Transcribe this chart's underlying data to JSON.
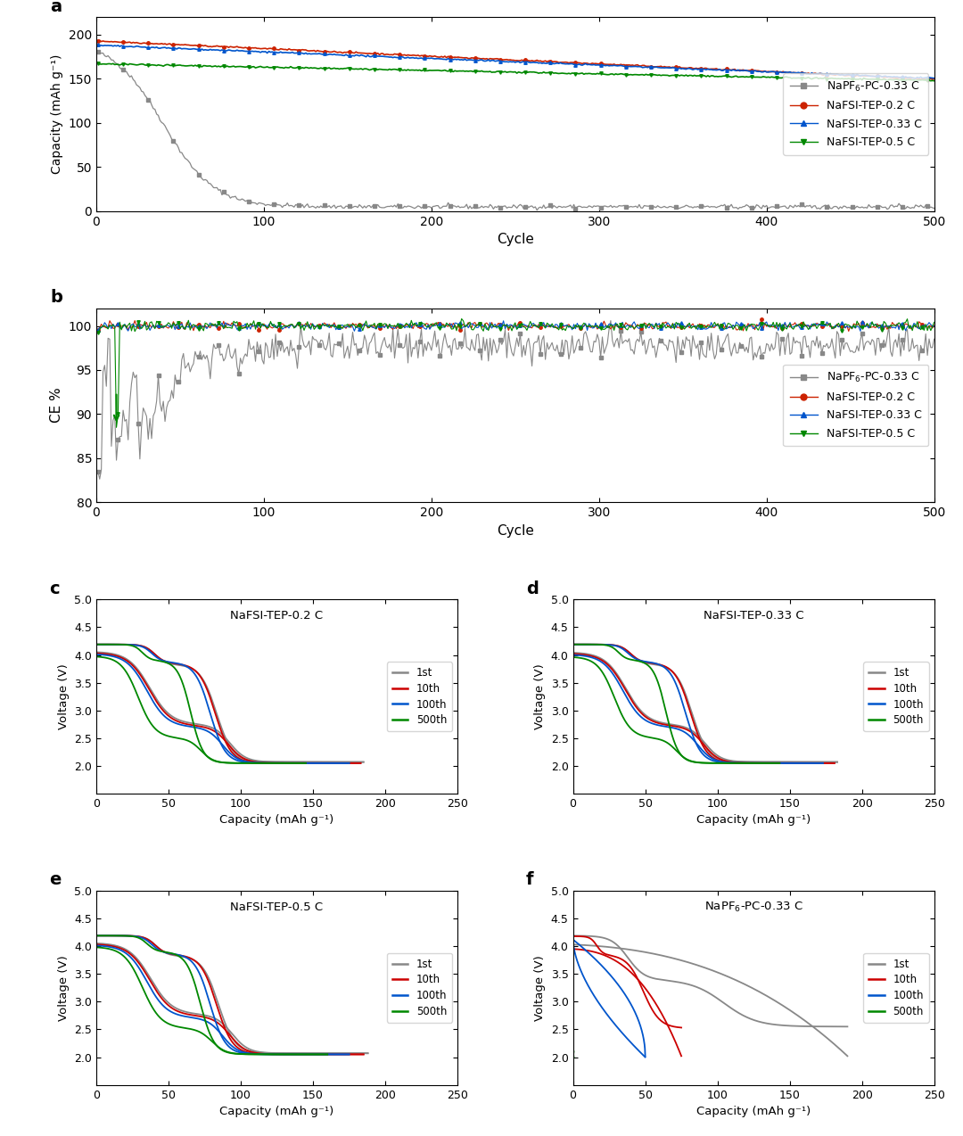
{
  "panel_a": {
    "xlabel": "Cycle",
    "ylabel": "Capacity (mAh g⁻¹)",
    "ylim": [
      0,
      220
    ],
    "xlim": [
      0,
      500
    ],
    "yticks": [
      0,
      50,
      100,
      150,
      200
    ],
    "xticks": [
      0,
      100,
      200,
      300,
      400,
      500
    ]
  },
  "panel_b": {
    "xlabel": "Cycle",
    "ylabel": "CE %",
    "ylim": [
      80,
      102
    ],
    "xlim": [
      0,
      500
    ],
    "yticks": [
      80,
      85,
      90,
      95,
      100
    ],
    "xticks": [
      0,
      100,
      200,
      300,
      400,
      500
    ]
  },
  "panel_cdef": {
    "xlabel": "Capacity (mAh g⁻¹)",
    "ylabel": "Voltage (V)",
    "xlim": [
      0,
      250
    ],
    "ylim": [
      1.5,
      5.0
    ],
    "yticks": [
      2.0,
      2.5,
      3.0,
      3.5,
      4.0,
      4.5,
      5.0
    ],
    "xticks": [
      0,
      50,
      100,
      150,
      200,
      250
    ],
    "cycle_colors": {
      "1st": "#888888",
      "10th": "#cc0000",
      "100th": "#0055cc",
      "500th": "#008800"
    }
  },
  "colors": {
    "gray": "#888888",
    "red": "#cc2200",
    "blue": "#0055cc",
    "green": "#008800"
  }
}
